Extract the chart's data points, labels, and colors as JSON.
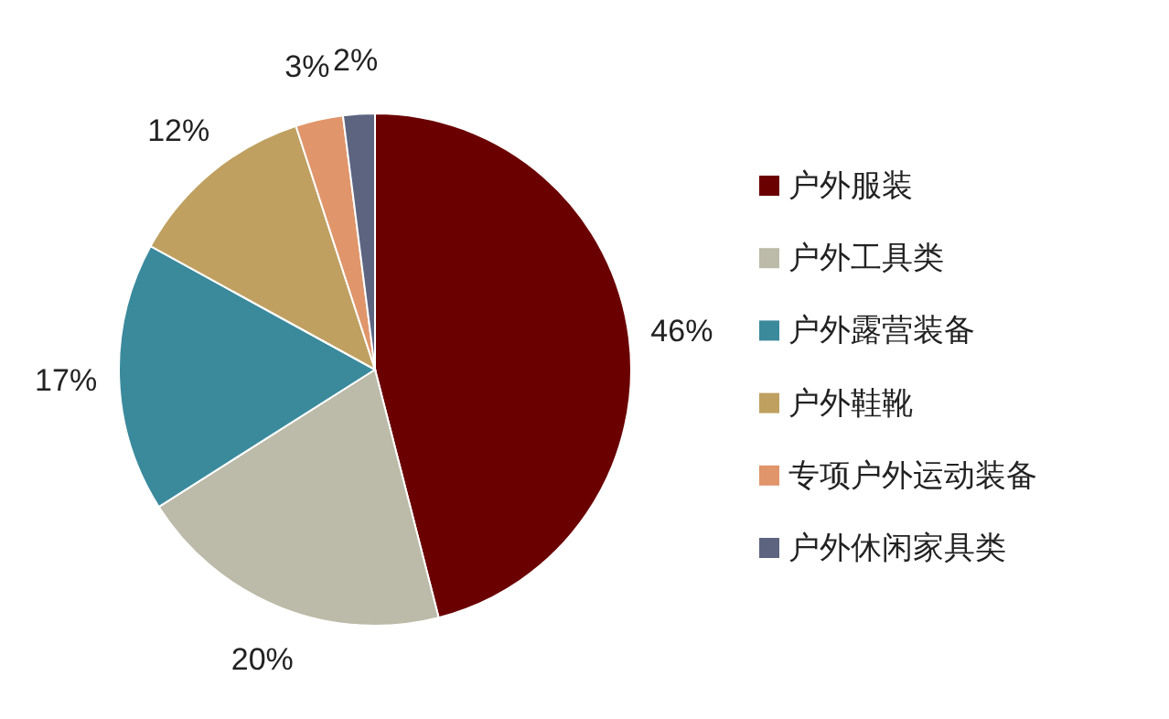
{
  "chart_data": {
    "type": "pie",
    "categories": [
      "户外服装",
      "户外工具类",
      "户外露营装备",
      "户外鞋靴",
      "专项户外运动装备",
      "户外休闲家具类"
    ],
    "values": [
      46,
      20,
      17,
      12,
      3,
      2
    ],
    "colors": [
      "#6b0000",
      "#bcbaa8",
      "#3a8a9c",
      "#bfa060",
      "#e0956a",
      "#5c6480"
    ],
    "value_labels": [
      "46%",
      "20%",
      "17%",
      "12%",
      "3%",
      "2%"
    ],
    "legend": "right"
  }
}
